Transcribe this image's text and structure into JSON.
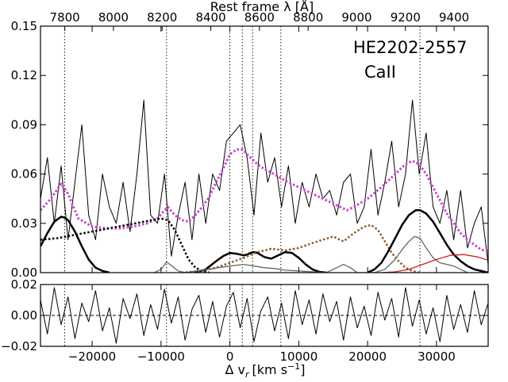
{
  "chart_data": {
    "type": "line",
    "annotations": [
      "HE2202-2557",
      "CaII"
    ],
    "top_axis": {
      "label": "Rest frame λ [Å]",
      "range": [
        7700,
        9540
      ],
      "ticks": [
        7800,
        8000,
        8200,
        8400,
        8600,
        8800,
        9000,
        9200,
        9400
      ]
    },
    "xlabel_main": "Δ v",
    "xlabel_sub": "r",
    "xlabel_unit": "[km s",
    "xlabel_exp": "−1",
    "xlabel_close": "]",
    "x_range": [
      -27500,
      37500
    ],
    "x_ticks": [
      -20000,
      -10000,
      0,
      10000,
      20000,
      30000
    ],
    "main_panel": {
      "ylim": [
        0,
        0.15
      ],
      "y_ticks": [
        "0.00",
        "0.03",
        "0.06",
        "0.09",
        "0.12",
        "0.15"
      ],
      "y_tick_values": [
        0,
        0.03,
        0.06,
        0.09,
        0.12,
        0.15
      ],
      "vlines_x": [
        -24000,
        -9200,
        0,
        1800,
        3300,
        7400,
        27600
      ],
      "series": [
        {
          "color": "#000000",
          "style": "solid",
          "width": 1,
          "x": [
            -27500,
            -26500,
            -25500,
            -24500,
            -23500,
            -22500,
            -21500,
            -20500,
            -19500,
            -18500,
            -17500,
            -16500,
            -15500,
            -14500,
            -13500,
            -12500,
            -11500,
            -10500,
            -9500,
            -8500,
            -7500,
            -6500,
            -5500,
            -4500,
            -3500,
            -2500,
            -1500,
            -500,
            500,
            1500,
            2500,
            3500,
            4500,
            5500,
            6500,
            7500,
            8500,
            9500,
            10500,
            11500,
            12500,
            13500,
            14500,
            15500,
            16500,
            17500,
            18500,
            19500,
            20500,
            21500,
            22500,
            23500,
            24500,
            25500,
            26500,
            27500,
            28500,
            29500,
            30500,
            31500,
            32500,
            33500,
            34500,
            35500,
            36500,
            37500
          ],
          "y": [
            0.045,
            0.07,
            0.03,
            0.065,
            0.02,
            0.055,
            0.09,
            0.035,
            0.02,
            0.06,
            0.04,
            0.03,
            0.055,
            0.025,
            0.06,
            0.105,
            0.035,
            0.03,
            0.06,
            0.01,
            0.035,
            0.055,
            0.02,
            0.06,
            0.03,
            0.06,
            0.05,
            0.08,
            0.085,
            0.09,
            0.07,
            0.035,
            0.085,
            0.055,
            0.07,
            0.04,
            0.065,
            0.03,
            0.055,
            0.04,
            0.06,
            0.045,
            0.05,
            0.035,
            0.055,
            0.06,
            0.03,
            0.04,
            0.075,
            0.035,
            0.055,
            0.08,
            0.04,
            0.06,
            0.105,
            0.06,
            0.085,
            0.04,
            0.03,
            0.05,
            0.02,
            0.05,
            0.015,
            0.03,
            0.04,
            0.005
          ]
        },
        {
          "color": "#cc44cc",
          "style": "dotted",
          "width": 3,
          "x": [
            -27500,
            -26000,
            -24500,
            -23500,
            -22000,
            -20000,
            -18000,
            -16000,
            -14000,
            -12000,
            -10500,
            -9500,
            -9000,
            -8000,
            -7000,
            -6000,
            -5000,
            -4000,
            -3000,
            -2000,
            -1000,
            0,
            1000,
            1800,
            3000,
            4000,
            5000,
            6000,
            8000,
            10000,
            12000,
            14000,
            16000,
            17000,
            18000,
            20000,
            22000,
            24000,
            25500,
            26500,
            27500,
            28500,
            29500,
            30500,
            31500,
            32500,
            33500,
            34500,
            35500,
            36500,
            37500
          ],
          "y": [
            0.038,
            0.045,
            0.054,
            0.048,
            0.033,
            0.028,
            0.027,
            0.027,
            0.028,
            0.03,
            0.033,
            0.038,
            0.04,
            0.035,
            0.032,
            0.031,
            0.035,
            0.04,
            0.046,
            0.055,
            0.063,
            0.072,
            0.075,
            0.075,
            0.07,
            0.066,
            0.063,
            0.061,
            0.056,
            0.052,
            0.048,
            0.044,
            0.04,
            0.038,
            0.04,
            0.045,
            0.052,
            0.06,
            0.066,
            0.068,
            0.066,
            0.06,
            0.052,
            0.044,
            0.036,
            0.03,
            0.024,
            0.02,
            0.017,
            0.014,
            0.013
          ]
        },
        {
          "color": "#000000",
          "style": "solid",
          "width": 2.5,
          "x": [
            -27500,
            -26500,
            -25500,
            -24500,
            -24000,
            -23500,
            -22500,
            -21500,
            -20500,
            -19500,
            -18500,
            -17500
          ],
          "y": [
            0.016,
            0.024,
            0.031,
            0.034,
            0.0335,
            0.032,
            0.025,
            0.016,
            0.008,
            0.003,
            0.001,
            0.0
          ]
        },
        {
          "color": "#000000",
          "style": "dotted",
          "width": 2.5,
          "x": [
            -27500,
            -25000,
            -22500,
            -20000,
            -17500,
            -15000,
            -12500,
            -10000,
            -9000,
            -8000,
            -7000,
            -6000,
            -5000,
            -4000,
            -3000
          ],
          "y": [
            0.02,
            0.021,
            0.023,
            0.025,
            0.027,
            0.029,
            0.031,
            0.033,
            0.032,
            0.026,
            0.017,
            0.008,
            0.003,
            0.001,
            0.0
          ]
        },
        {
          "color": "#000000",
          "style": "solid",
          "width": 2.5,
          "x": [
            -5000,
            -3500,
            -2000,
            -1000,
            0,
            1000,
            2000,
            2500,
            3000,
            3500,
            4000,
            5000,
            6000,
            7000,
            8000,
            9000,
            10000,
            11000,
            12000,
            13000,
            14000
          ],
          "y": [
            0.0,
            0.002,
            0.007,
            0.01,
            0.012,
            0.0115,
            0.0105,
            0.011,
            0.012,
            0.0125,
            0.012,
            0.0095,
            0.0085,
            0.0105,
            0.0125,
            0.012,
            0.009,
            0.005,
            0.002,
            0.0005,
            0.0
          ]
        },
        {
          "color": "#8b5a2b",
          "style": "dotted",
          "width": 2.5,
          "x": [
            -7000,
            -4000,
            -2000,
            0,
            2000,
            4000,
            6000,
            8000,
            10000,
            12000,
            13500,
            15000,
            16500,
            18000,
            19500,
            20500,
            21500,
            22500,
            23500,
            24500,
            25500,
            26500,
            27500
          ],
          "y": [
            0.0,
            0.001,
            0.003,
            0.006,
            0.009,
            0.0125,
            0.0145,
            0.0135,
            0.015,
            0.018,
            0.02,
            0.022,
            0.019,
            0.024,
            0.028,
            0.029,
            0.026,
            0.019,
            0.012,
            0.007,
            0.003,
            0.001,
            0.0
          ]
        },
        {
          "color": "#000000",
          "style": "solid",
          "width": 2.5,
          "x": [
            20000,
            21000,
            22000,
            23000,
            24000,
            25000,
            26000,
            27000,
            27600,
            28500,
            29500,
            30500,
            31500,
            32500,
            33500,
            34500,
            35500,
            36500,
            37500
          ],
          "y": [
            0.0,
            0.002,
            0.006,
            0.013,
            0.021,
            0.029,
            0.035,
            0.038,
            0.038,
            0.036,
            0.031,
            0.024,
            0.017,
            0.011,
            0.007,
            0.004,
            0.002,
            0.001,
            0.0
          ]
        },
        {
          "color": "#666666",
          "style": "solid",
          "width": 1.3,
          "x": [
            -11000,
            -10000,
            -9200,
            -8400,
            -7500,
            -6500,
            0,
            2000,
            3500,
            5000,
            6500,
            8000,
            14000,
            15500,
            16500,
            17500,
            18500,
            21000,
            22500,
            24000,
            25000,
            26000,
            26800,
            27600,
            28500,
            29500,
            30500,
            31500,
            32500,
            33500,
            34500
          ],
          "y": [
            0.0,
            0.002,
            0.0065,
            0.004,
            0.001,
            0.0,
            0.004,
            0.005,
            0.004,
            0.003,
            0.0025,
            0.0015,
            0.0,
            0.003,
            0.005,
            0.003,
            0.0,
            0.0,
            0.002,
            0.008,
            0.014,
            0.019,
            0.022,
            0.021,
            0.015,
            0.009,
            0.006,
            0.005,
            0.004,
            0.002,
            0.0
          ]
        },
        {
          "color": "#cc2222",
          "style": "solid",
          "width": 1.3,
          "x": [
            22000,
            24000,
            26000,
            28000,
            30000,
            32000,
            34000,
            36000,
            37500
          ],
          "y": [
            0.0,
            0.0005,
            0.002,
            0.005,
            0.008,
            0.0105,
            0.011,
            0.0095,
            0.0075
          ]
        }
      ]
    },
    "residual_panel": {
      "ylim": [
        -0.02,
        0.02
      ],
      "y_ticks": [
        "0.02",
        "0.00",
        "−0.02"
      ],
      "y_tick_values": [
        0.02,
        0.0,
        -0.02
      ],
      "vlines_x": [
        -24000,
        -9200,
        0,
        1800,
        3300,
        7400,
        27600
      ],
      "zero_line": 0.0,
      "series": [
        {
          "color": "#000000",
          "style": "solid",
          "width": 1,
          "x": [
            -27500,
            -26500,
            -25500,
            -24500,
            -23500,
            -22500,
            -21500,
            -20500,
            -19500,
            -18500,
            -17500,
            -16500,
            -15500,
            -14500,
            -13500,
            -12500,
            -11500,
            -10500,
            -9500,
            -8500,
            -7500,
            -6500,
            -5500,
            -4500,
            -3500,
            -2500,
            -1500,
            -500,
            500,
            1500,
            2500,
            3500,
            4500,
            5500,
            6500,
            7500,
            8500,
            9500,
            10500,
            11500,
            12500,
            13500,
            14500,
            15500,
            16500,
            17500,
            18500,
            19500,
            20500,
            21500,
            22500,
            23500,
            24500,
            25500,
            26500,
            27500,
            28500,
            29500,
            30500,
            31500,
            32500,
            33500,
            34500,
            35500,
            36500,
            37500
          ],
          "y": [
            0.01,
            -0.012,
            0.018,
            -0.006,
            0.012,
            -0.015,
            0.008,
            -0.004,
            0.016,
            -0.01,
            0.005,
            -0.018,
            0.011,
            -0.002,
            0.014,
            -0.013,
            0.007,
            -0.009,
            0.017,
            -0.005,
            0.012,
            -0.016,
            0.004,
            0.013,
            -0.011,
            0.009,
            -0.014,
            0.006,
            0.015,
            -0.008,
            0.011,
            -0.017,
            0.003,
            0.012,
            -0.01,
            0.008,
            -0.015,
            0.016,
            -0.006,
            0.01,
            -0.012,
            0.014,
            -0.004,
            0.009,
            -0.016,
            0.012,
            -0.008,
            0.006,
            -0.013,
            0.015,
            -0.003,
            0.011,
            -0.014,
            0.018,
            -0.007,
            0.01,
            -0.012,
            0.005,
            -0.017,
            0.013,
            -0.009,
            0.007,
            -0.011,
            0.016,
            -0.006,
            0.008
          ]
        }
      ]
    }
  }
}
